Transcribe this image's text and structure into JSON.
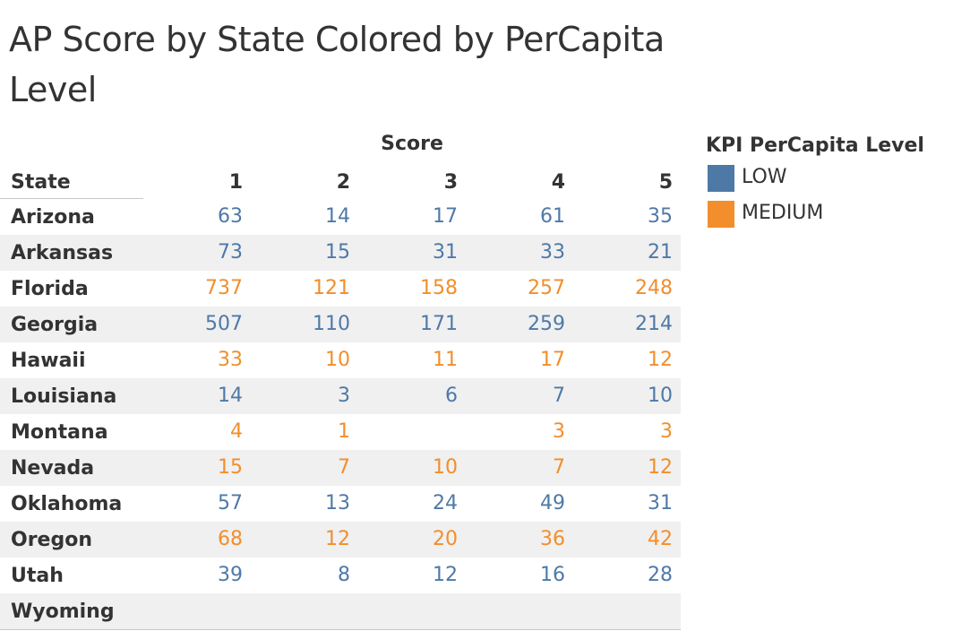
{
  "title": "AP Score by State Colored by PerCapita Level",
  "chart_data": {
    "type": "table",
    "column_group_label": "Score",
    "row_header": "State",
    "columns": [
      "1",
      "2",
      "3",
      "4",
      "5"
    ],
    "rows": [
      {
        "state": "Arizona",
        "level": "LOW",
        "values": [
          "63",
          "14",
          "17",
          "61",
          "35"
        ]
      },
      {
        "state": "Arkansas",
        "level": "LOW",
        "values": [
          "73",
          "15",
          "31",
          "33",
          "21"
        ]
      },
      {
        "state": "Florida",
        "level": "MEDIUM",
        "values": [
          "737",
          "121",
          "158",
          "257",
          "248"
        ]
      },
      {
        "state": "Georgia",
        "level": "LOW",
        "values": [
          "507",
          "110",
          "171",
          "259",
          "214"
        ]
      },
      {
        "state": "Hawaii",
        "level": "MEDIUM",
        "values": [
          "33",
          "10",
          "11",
          "17",
          "12"
        ]
      },
      {
        "state": "Louisiana",
        "level": "LOW",
        "values": [
          "14",
          "3",
          "6",
          "7",
          "10"
        ]
      },
      {
        "state": "Montana",
        "level": "MEDIUM",
        "values": [
          "4",
          "1",
          "",
          "3",
          "3"
        ]
      },
      {
        "state": "Nevada",
        "level": "MEDIUM",
        "values": [
          "15",
          "7",
          "10",
          "7",
          "12"
        ]
      },
      {
        "state": "Oklahoma",
        "level": "LOW",
        "values": [
          "57",
          "13",
          "24",
          "49",
          "31"
        ]
      },
      {
        "state": "Oregon",
        "level": "MEDIUM",
        "values": [
          "68",
          "12",
          "20",
          "36",
          "42"
        ]
      },
      {
        "state": "Utah",
        "level": "LOW",
        "values": [
          "39",
          "8",
          "12",
          "16",
          "28"
        ]
      },
      {
        "state": "Wyoming",
        "level": "",
        "values": [
          "",
          "",
          "",
          "",
          ""
        ]
      }
    ],
    "legend": {
      "title": "KPI PerCapita Level",
      "items": [
        {
          "label": "LOW",
          "color": "#4e79a7"
        },
        {
          "label": "MEDIUM",
          "color": "#f28e2b"
        }
      ]
    }
  }
}
